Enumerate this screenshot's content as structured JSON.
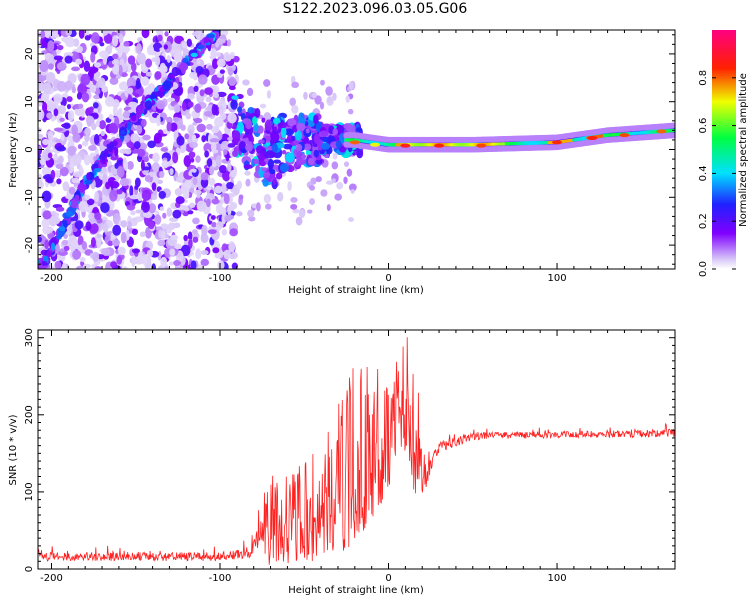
{
  "figure_title": "S122.2023.096.03.05.G06",
  "colors": {
    "snr_line": "#ff2020",
    "frame": "#000000"
  },
  "colorbar": {
    "label": "Normalized spectral amplitude",
    "ticks": [
      "0.0",
      "0.2",
      "0.4",
      "0.6",
      "0.8"
    ],
    "colormap": "white-to-purple-blue-cyan-green-yellow-red-magenta"
  },
  "chart_data": [
    {
      "type": "heatmap",
      "title": "",
      "xlabel": "Height of straight line (km)",
      "ylabel": "Frequency (Hz)",
      "xlim": [
        -208,
        170
      ],
      "ylim": [
        -25,
        25
      ],
      "xticks": [
        "-200",
        "-100",
        "0",
        "100"
      ],
      "yticks": [
        "-20",
        "-10",
        "0",
        "10",
        "20"
      ],
      "value_range": [
        0,
        1
      ],
      "features": [
        {
          "name": "diagonal streak",
          "points": [
            [
              -205,
              -24
            ],
            [
              -180,
              -7
            ],
            [
              -150,
              7
            ],
            [
              -120,
              18
            ],
            [
              -100,
              25
            ]
          ]
        },
        {
          "name": "dominant ridge",
          "points": [
            [
              -90,
              5
            ],
            [
              -70,
              -1
            ],
            [
              -50,
              2
            ],
            [
              -20,
              2
            ],
            [
              0,
              1
            ],
            [
              50,
              1
            ],
            [
              100,
              1.5
            ],
            [
              130,
              3
            ],
            [
              170,
              4
            ]
          ]
        }
      ]
    },
    {
      "type": "line",
      "title": "",
      "xlabel": "Height of straight line (km)",
      "ylabel": "SNR (10 * v/v)",
      "xlim": [
        -208,
        170
      ],
      "ylim": [
        0,
        310
      ],
      "xticks": [
        "-200",
        "-100",
        "0",
        "100"
      ],
      "yticks": [
        "0",
        "100",
        "200",
        "300"
      ],
      "envelope": [
        {
          "x": -208,
          "lo": 2,
          "hi": 30
        },
        {
          "x": -100,
          "lo": 2,
          "hi": 30
        },
        {
          "x": -82,
          "lo": 3,
          "hi": 40
        },
        {
          "x": -72,
          "lo": 5,
          "hi": 120
        },
        {
          "x": -55,
          "lo": 8,
          "hi": 130
        },
        {
          "x": -40,
          "lo": 10,
          "hi": 160
        },
        {
          "x": -20,
          "lo": 30,
          "hi": 270
        },
        {
          "x": 0,
          "lo": 100,
          "hi": 260
        },
        {
          "x": 8,
          "lo": 160,
          "hi": 310
        },
        {
          "x": 15,
          "lo": 95,
          "hi": 305
        },
        {
          "x": 22,
          "lo": 100,
          "hi": 145
        },
        {
          "x": 30,
          "lo": 140,
          "hi": 175
        },
        {
          "x": 50,
          "lo": 160,
          "hi": 185
        },
        {
          "x": 100,
          "lo": 163,
          "hi": 185
        },
        {
          "x": 170,
          "lo": 163,
          "hi": 190
        }
      ]
    }
  ]
}
